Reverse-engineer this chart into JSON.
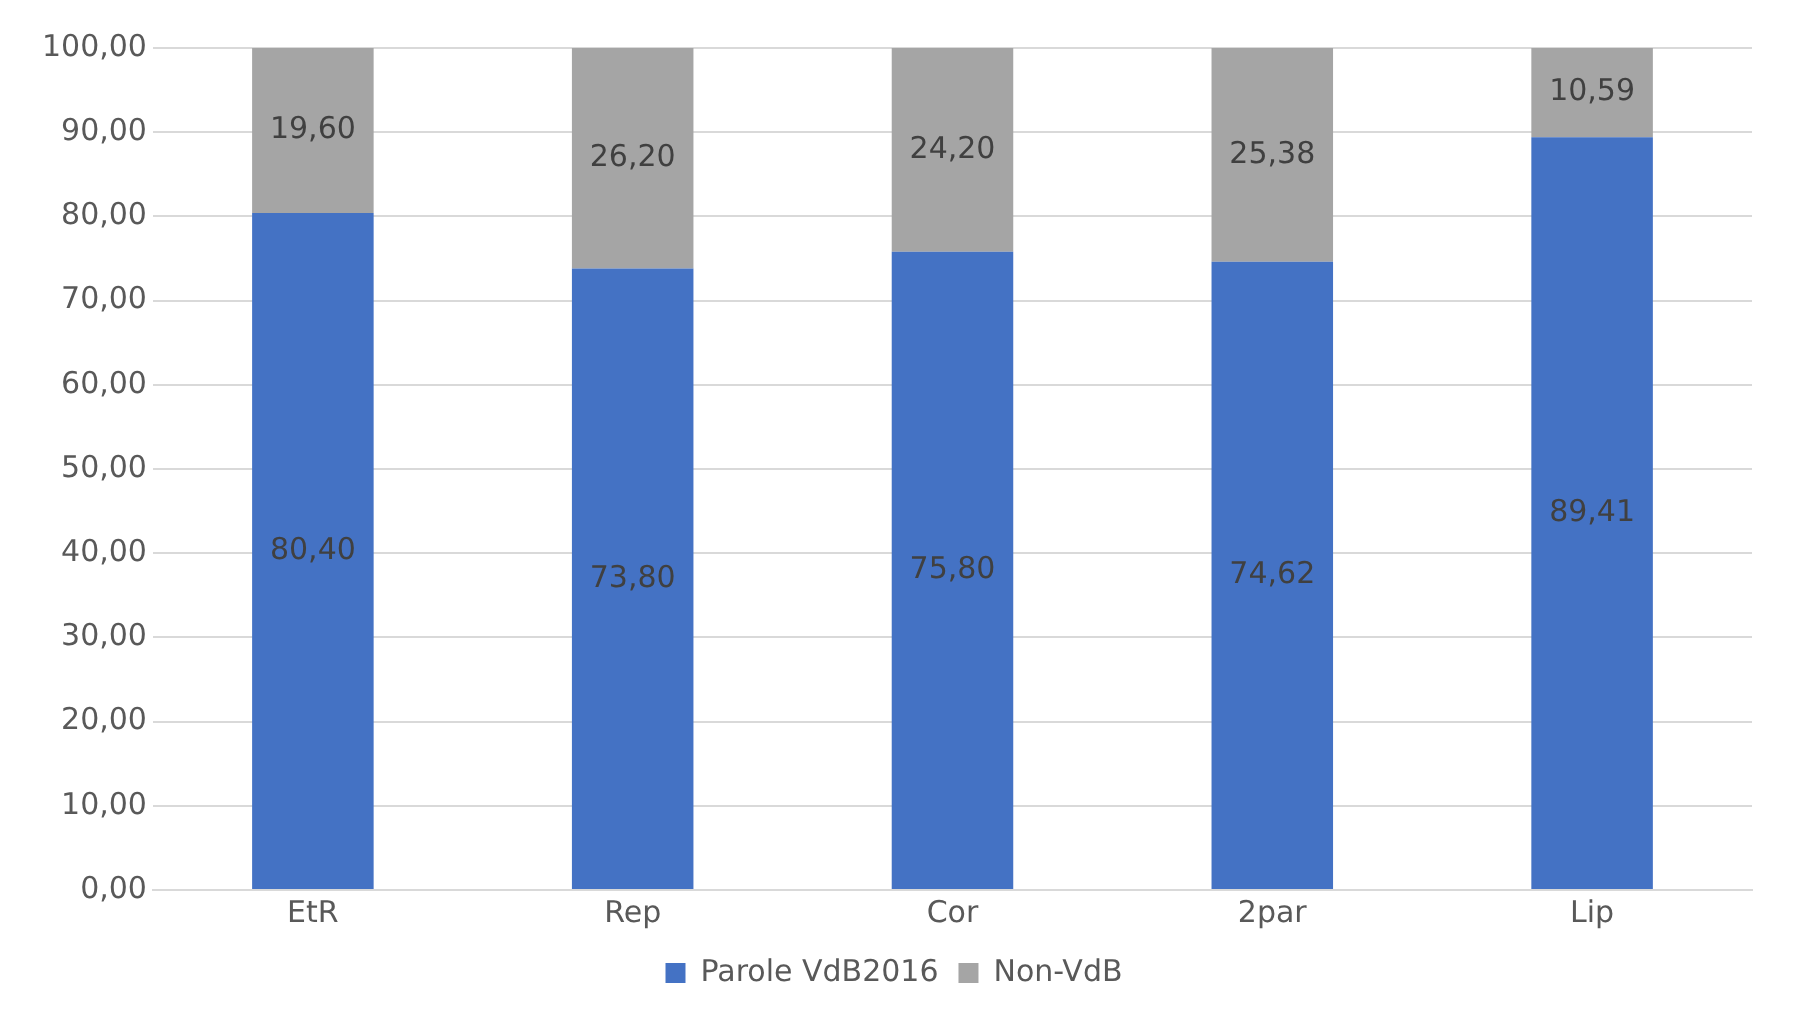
{
  "chart_data": {
    "type": "bar",
    "stacked": true,
    "categories": [
      "EtR",
      "Rep",
      "Cor",
      "2par",
      "Lip"
    ],
    "series": [
      {
        "name": "Parole VdB2016",
        "color": "#4472c4",
        "values": [
          80.4,
          73.8,
          75.8,
          74.62,
          89.41
        ],
        "value_labels": [
          "80,40",
          "73,80",
          "75,80",
          "74,62",
          "89,41"
        ]
      },
      {
        "name": "Non-VdB",
        "color": "#a5a5a5",
        "values": [
          19.6,
          26.2,
          24.2,
          25.38,
          10.59
        ],
        "value_labels": [
          "19,60",
          "26,20",
          "24,20",
          "25,38",
          "10,59"
        ]
      }
    ],
    "ylim": [
      0,
      100
    ],
    "yticks": [
      {
        "value": 0,
        "label": "0,00"
      },
      {
        "value": 10,
        "label": "10,00"
      },
      {
        "value": 20,
        "label": "20,00"
      },
      {
        "value": 30,
        "label": "30,00"
      },
      {
        "value": 40,
        "label": "40,00"
      },
      {
        "value": 50,
        "label": "50,00"
      },
      {
        "value": 60,
        "label": "60,00"
      },
      {
        "value": 70,
        "label": "70,00"
      },
      {
        "value": 80,
        "label": "80,00"
      },
      {
        "value": 90,
        "label": "90,00"
      },
      {
        "value": 100,
        "label": "100,00"
      }
    ],
    "grid": "y",
    "legend": "bottom"
  }
}
